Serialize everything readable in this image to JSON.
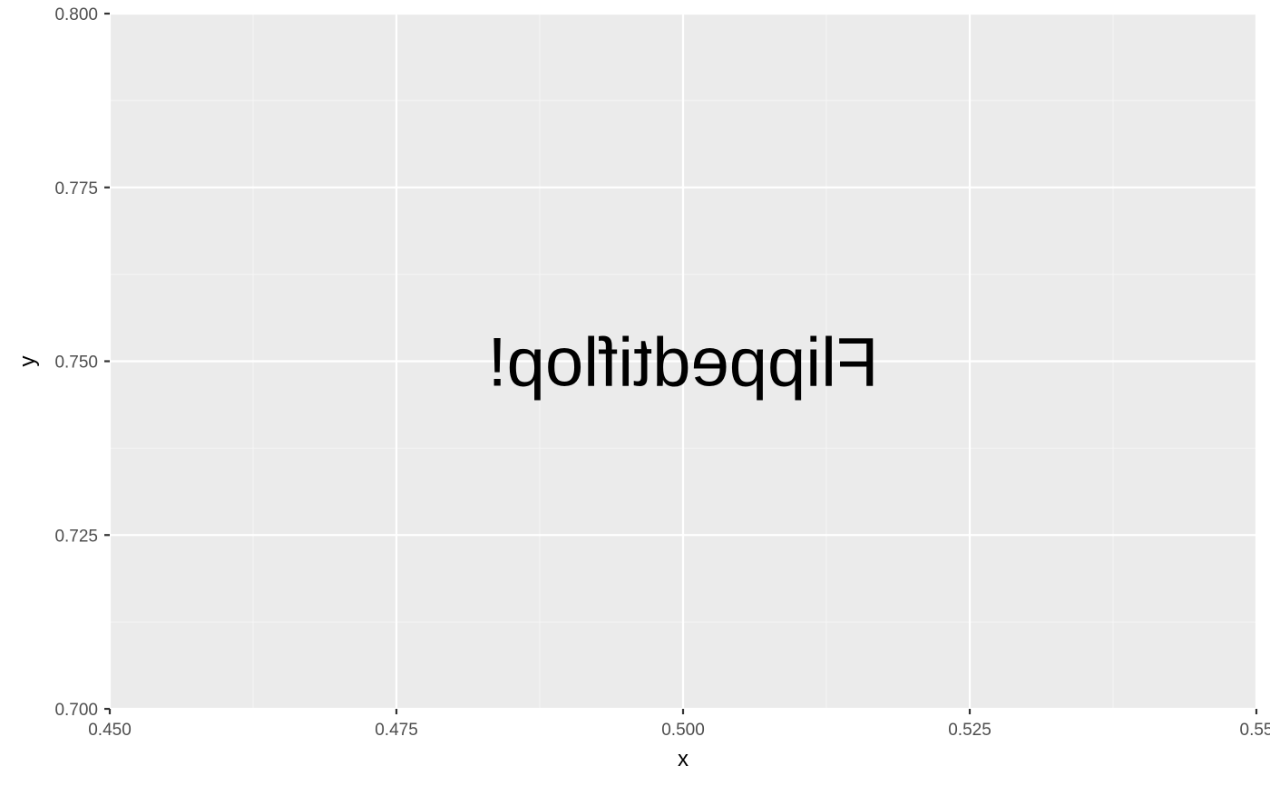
{
  "chart_data": {
    "type": "scatter",
    "title": "",
    "xlabel": "x",
    "ylabel": "y",
    "xlim": [
      0.45,
      0.55
    ],
    "ylim": [
      0.7,
      0.8
    ],
    "x_ticks": [
      0.45,
      0.475,
      0.5,
      0.525,
      0.55
    ],
    "x_tick_labels": [
      "0.450",
      "0.475",
      "0.500",
      "0.525",
      "0.55"
    ],
    "y_ticks": [
      0.7,
      0.725,
      0.75,
      0.775,
      0.8
    ],
    "y_tick_labels": [
      "0.700",
      "0.725",
      "0.750",
      "0.775",
      "0.800"
    ],
    "grid": true,
    "annotations": [
      {
        "text": "Flippedtiflop!",
        "x": 0.5,
        "y": 0.75,
        "mirrored": true
      }
    ]
  },
  "colors": {
    "panel_background": "#EBEBEB",
    "grid_major": "#FFFFFF",
    "grid_minor": "#F5F5F5",
    "tick_label": "#4D4D4D",
    "tick_mark": "#333333",
    "text": "#000000"
  }
}
